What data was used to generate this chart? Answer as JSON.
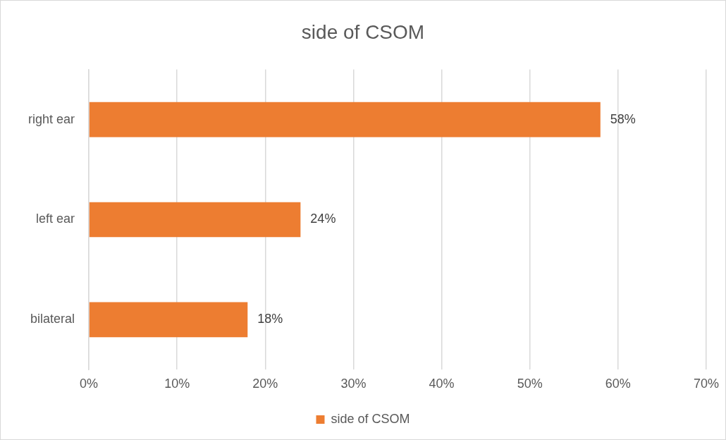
{
  "chart_data": {
    "type": "bar",
    "orientation": "horizontal",
    "title": "side of CSOM",
    "categories": [
      "right ear",
      "left ear",
      "bilateral"
    ],
    "series": [
      {
        "name": "side of CSOM",
        "color": "#ed7d31",
        "values": [
          58,
          24,
          18
        ],
        "value_labels": [
          "58%",
          "24%",
          "18%"
        ]
      }
    ],
    "xlim": [
      0,
      70
    ],
    "xticks": [
      {
        "value": 0,
        "label": "0%"
      },
      {
        "value": 10,
        "label": "10%"
      },
      {
        "value": 20,
        "label": "20%"
      },
      {
        "value": 30,
        "label": "30%"
      },
      {
        "value": 40,
        "label": "40%"
      },
      {
        "value": 50,
        "label": "50%"
      },
      {
        "value": 60,
        "label": "60%"
      },
      {
        "value": 70,
        "label": "70%"
      }
    ],
    "grid": "x",
    "legend": "bottom"
  }
}
